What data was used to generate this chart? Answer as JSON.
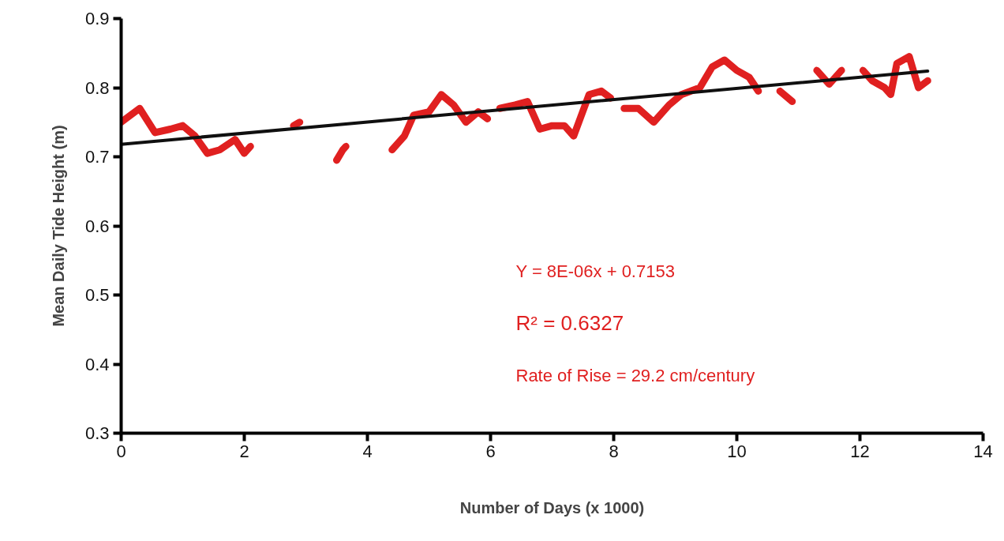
{
  "chart_data": {
    "type": "line",
    "xlabel": "Number of Days (x 1000)",
    "ylabel": "Mean Daily Tide Height (m)",
    "annotations": [
      "Y = 8E-06x + 0.7153",
      "R² = 0.6327",
      "Rate of Rise = 29.2 cm/century"
    ],
    "series": [
      {
        "color": "#e02020",
        "x": [
          0,
          0.3,
          0.55,
          0.8,
          1.0,
          1.2,
          1.4,
          1.6,
          1.85,
          2.0,
          2.1,
          2.4,
          2.8,
          2.9,
          3.2,
          3.5,
          3.6,
          3.65,
          4.0,
          4.4,
          4.6,
          4.75,
          5.0,
          5.2,
          5.4,
          5.6,
          5.8,
          5.95,
          6.05,
          6.15,
          6.4,
          6.6,
          6.8,
          7.0,
          7.2,
          7.35,
          7.6,
          7.8,
          7.95,
          8.05,
          8.17,
          8.4,
          8.65,
          8.9,
          9.1,
          9.4,
          9.6,
          9.8,
          10.0,
          10.2,
          10.35,
          10.5,
          10.7,
          10.9,
          11.1,
          11.3,
          11.5,
          11.7,
          11.9,
          12.05,
          12.2,
          12.4,
          12.5,
          12.6,
          12.8,
          12.95,
          13.1
        ],
        "values": [
          0.75,
          0.77,
          0.735,
          0.74,
          0.745,
          0.73,
          0.705,
          0.71,
          0.725,
          0.705,
          0.715,
          null,
          0.745,
          0.75,
          null,
          0.695,
          0.71,
          0.715,
          null,
          0.71,
          0.73,
          0.76,
          0.765,
          0.79,
          0.775,
          0.75,
          0.765,
          0.755,
          null,
          0.77,
          0.775,
          0.78,
          0.74,
          0.745,
          0.745,
          0.73,
          0.79,
          0.795,
          0.785,
          null,
          0.77,
          0.77,
          0.75,
          0.775,
          0.79,
          0.8,
          0.83,
          0.84,
          0.825,
          0.815,
          0.795,
          null,
          0.795,
          0.78,
          null,
          0.825,
          0.805,
          0.825,
          null,
          0.825,
          0.81,
          0.8,
          0.79,
          0.835,
          0.845,
          0.8,
          0.81
        ]
      },
      {
        "color": "#101010",
        "x": [
          0,
          13.1
        ],
        "values": [
          0.718,
          0.824
        ]
      }
    ],
    "xlim": [
      0,
      14
    ],
    "xticks": [
      0,
      2,
      4,
      6,
      8,
      10,
      12,
      14
    ],
    "ylim": [
      0.3,
      0.9
    ],
    "yticks": [
      0.3,
      0.4,
      0.5,
      0.6,
      0.7,
      0.8,
      0.9
    ],
    "grid": false
  }
}
